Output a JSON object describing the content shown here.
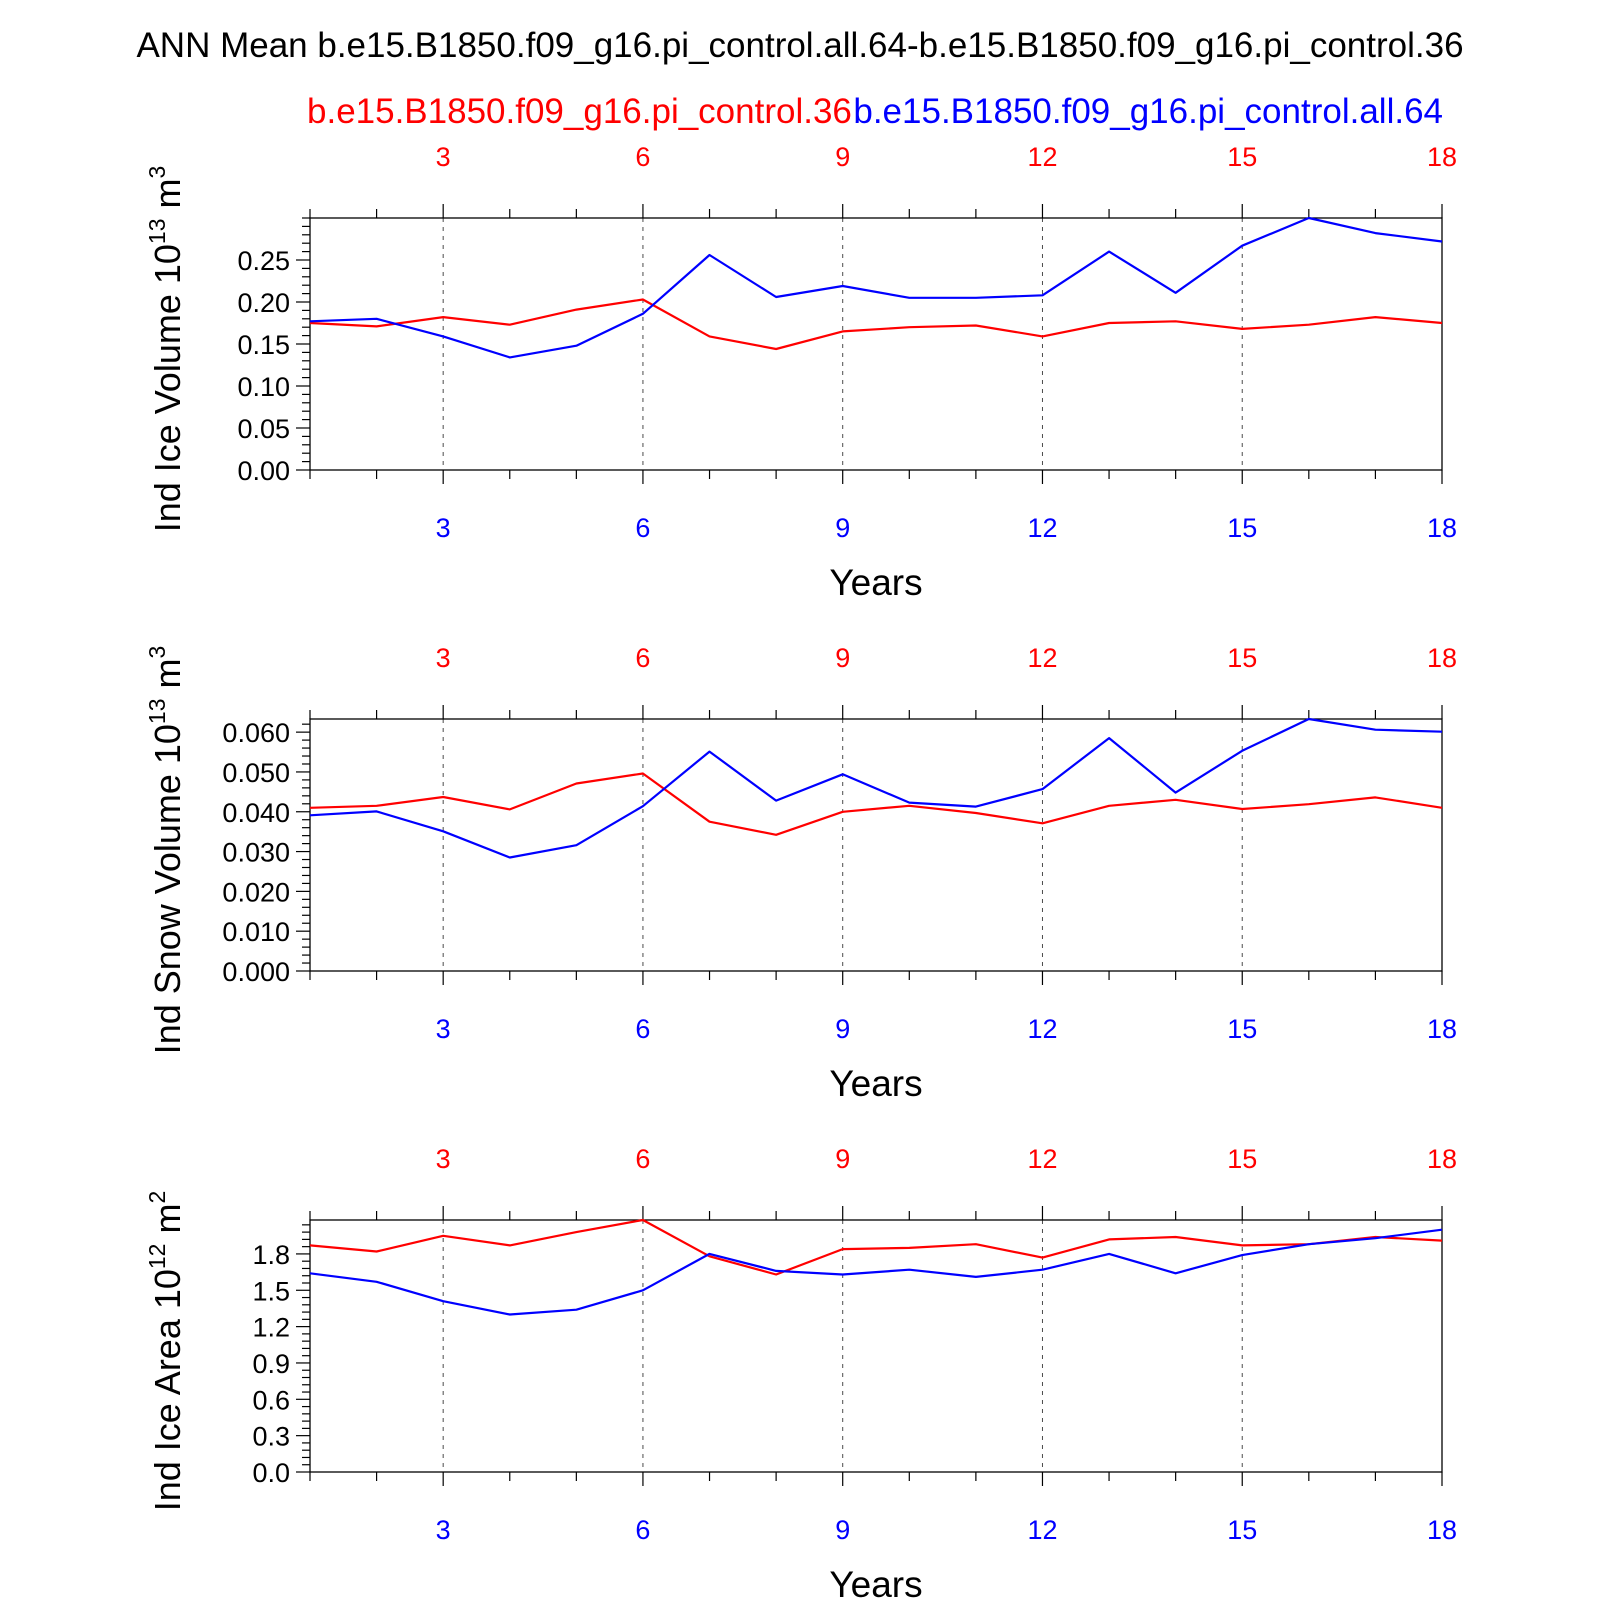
{
  "title": "ANN Mean b.e15.B1850.f09_g16.pi_control.all.64-b.e15.B1850.f09_g16.pi_control.36",
  "colors": {
    "series_a": "#ff0000",
    "series_b": "#0000ff",
    "axis": "#000000",
    "grid": "#000000"
  },
  "legend": {
    "series_a": "b.e15.B1850.f09_g16.pi_control.36",
    "series_b": "b.e15.B1850.f09_g16.pi_control.all.64"
  },
  "chart_data": [
    {
      "type": "line",
      "ylabel_main": "Ind Ice Volume 10",
      "ylabel_exp": "13",
      "ylabel_unit": "m",
      "ylabel_unit_exp": "3",
      "xlabel": "Years",
      "x": [
        1,
        2,
        3,
        4,
        5,
        6,
        7,
        8,
        9,
        10,
        11,
        12,
        13,
        14,
        15,
        16,
        17,
        18
      ],
      "xlim": [
        1,
        18
      ],
      "xticks": [
        3,
        6,
        9,
        12,
        15,
        18
      ],
      "xtick_labels": [
        "3",
        "6",
        "9",
        "12",
        "15",
        "18"
      ],
      "ylim": [
        0,
        0.3
      ],
      "yticks": [
        0,
        0.05,
        0.1,
        0.15,
        0.2,
        0.25
      ],
      "ytick_labels": [
        "0.00",
        "0.05",
        "0.10",
        "0.15",
        "0.20",
        "0.25"
      ],
      "grid": "vertical-dashed",
      "series": [
        {
          "key": "series_a",
          "values": [
            0.175,
            0.171,
            0.182,
            0.173,
            0.191,
            0.203,
            0.159,
            0.144,
            0.165,
            0.17,
            0.172,
            0.159,
            0.175,
            0.177,
            0.168,
            0.173,
            0.182,
            0.175
          ]
        },
        {
          "key": "series_b",
          "values": [
            0.177,
            0.18,
            0.159,
            0.134,
            0.148,
            0.186,
            0.256,
            0.206,
            0.219,
            0.205,
            0.205,
            0.208,
            0.26,
            0.211,
            0.267,
            0.3,
            0.282,
            0.272
          ]
        }
      ]
    },
    {
      "type": "line",
      "ylabel_main": "Ind Snow Volume 10",
      "ylabel_exp": "13",
      "ylabel_unit": "m",
      "ylabel_unit_exp": "3",
      "xlabel": "Years",
      "x": [
        1,
        2,
        3,
        4,
        5,
        6,
        7,
        8,
        9,
        10,
        11,
        12,
        13,
        14,
        15,
        16,
        17,
        18
      ],
      "xlim": [
        1,
        18
      ],
      "xticks": [
        3,
        6,
        9,
        12,
        15,
        18
      ],
      "xtick_labels": [
        "3",
        "6",
        "9",
        "12",
        "15",
        "18"
      ],
      "ylim": [
        0,
        0.0633
      ],
      "yticks": [
        0,
        0.01,
        0.02,
        0.03,
        0.04,
        0.05,
        0.06
      ],
      "ytick_labels": [
        "0.000",
        "0.010",
        "0.020",
        "0.030",
        "0.040",
        "0.050",
        "0.060"
      ],
      "grid": "vertical-dashed",
      "series": [
        {
          "key": "series_a",
          "values": [
            0.041,
            0.0415,
            0.0437,
            0.0406,
            0.0471,
            0.0496,
            0.0375,
            0.0342,
            0.04,
            0.0415,
            0.0397,
            0.0371,
            0.0415,
            0.043,
            0.0407,
            0.0419,
            0.0436,
            0.041
          ]
        },
        {
          "key": "series_b",
          "values": [
            0.0391,
            0.0401,
            0.0351,
            0.0285,
            0.0316,
            0.0414,
            0.0551,
            0.0428,
            0.0494,
            0.0423,
            0.0413,
            0.0457,
            0.0585,
            0.0448,
            0.0553,
            0.0633,
            0.0606,
            0.0601
          ]
        }
      ]
    },
    {
      "type": "line",
      "ylabel_main": "Ind Ice Area 10",
      "ylabel_exp": "12",
      "ylabel_unit": "m",
      "ylabel_unit_exp": "2",
      "xlabel": "Years",
      "x": [
        1,
        2,
        3,
        4,
        5,
        6,
        7,
        8,
        9,
        10,
        11,
        12,
        13,
        14,
        15,
        16,
        17,
        18
      ],
      "xlim": [
        1,
        18
      ],
      "xticks": [
        3,
        6,
        9,
        12,
        15,
        18
      ],
      "xtick_labels": [
        "3",
        "6",
        "9",
        "12",
        "15",
        "18"
      ],
      "ylim": [
        0,
        2.08
      ],
      "yticks": [
        0,
        0.3,
        0.6,
        0.9,
        1.2,
        1.5,
        1.8
      ],
      "ytick_labels": [
        "0.0",
        "0.3",
        "0.6",
        "0.9",
        "1.2",
        "1.5",
        "1.8"
      ],
      "grid": "vertical-dashed",
      "series": [
        {
          "key": "series_a",
          "values": [
            1.87,
            1.82,
            1.95,
            1.87,
            1.98,
            2.08,
            1.78,
            1.63,
            1.84,
            1.85,
            1.88,
            1.77,
            1.92,
            1.94,
            1.87,
            1.88,
            1.94,
            1.91
          ]
        },
        {
          "key": "series_b",
          "values": [
            1.64,
            1.57,
            1.41,
            1.3,
            1.34,
            1.5,
            1.8,
            1.66,
            1.63,
            1.67,
            1.61,
            1.67,
            1.8,
            1.64,
            1.79,
            1.88,
            1.93,
            2.0
          ]
        }
      ]
    }
  ]
}
